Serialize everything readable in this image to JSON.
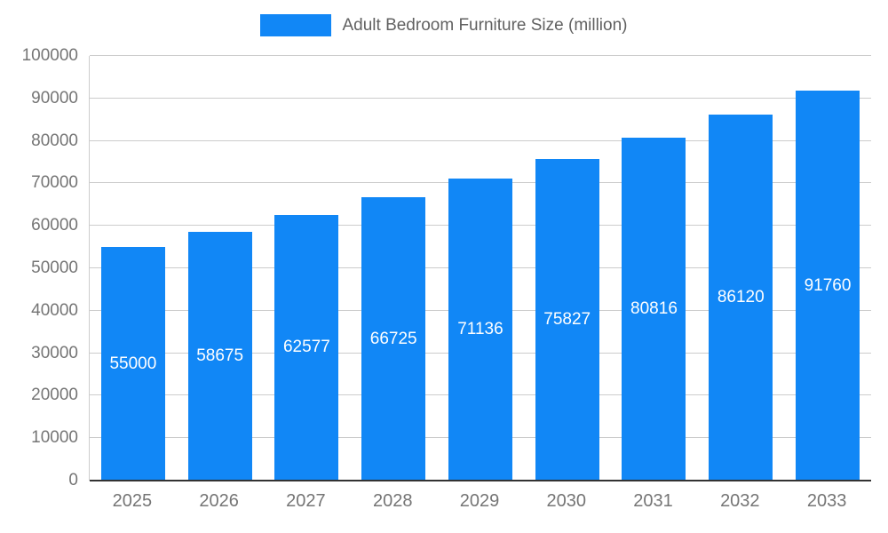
{
  "chart_data": {
    "type": "bar",
    "title": "Adult Bedroom Furniture Size (million)",
    "categories": [
      "2025",
      "2026",
      "2027",
      "2028",
      "2029",
      "2030",
      "2031",
      "2032",
      "2033"
    ],
    "values": [
      55000,
      58675,
      62577,
      66725,
      71136,
      75827,
      80816,
      86120,
      91760
    ],
    "xlabel": "",
    "ylabel": "",
    "ylim": [
      0,
      100000
    ],
    "yticks": [
      0,
      10000,
      20000,
      30000,
      40000,
      50000,
      60000,
      70000,
      80000,
      90000,
      100000
    ],
    "grid": true,
    "legend_position": "top-center",
    "bar_color": "#1187F6",
    "value_label_color": "#ffffff",
    "axis_text_color": "#757575",
    "gridline_color": "#cccccc"
  }
}
